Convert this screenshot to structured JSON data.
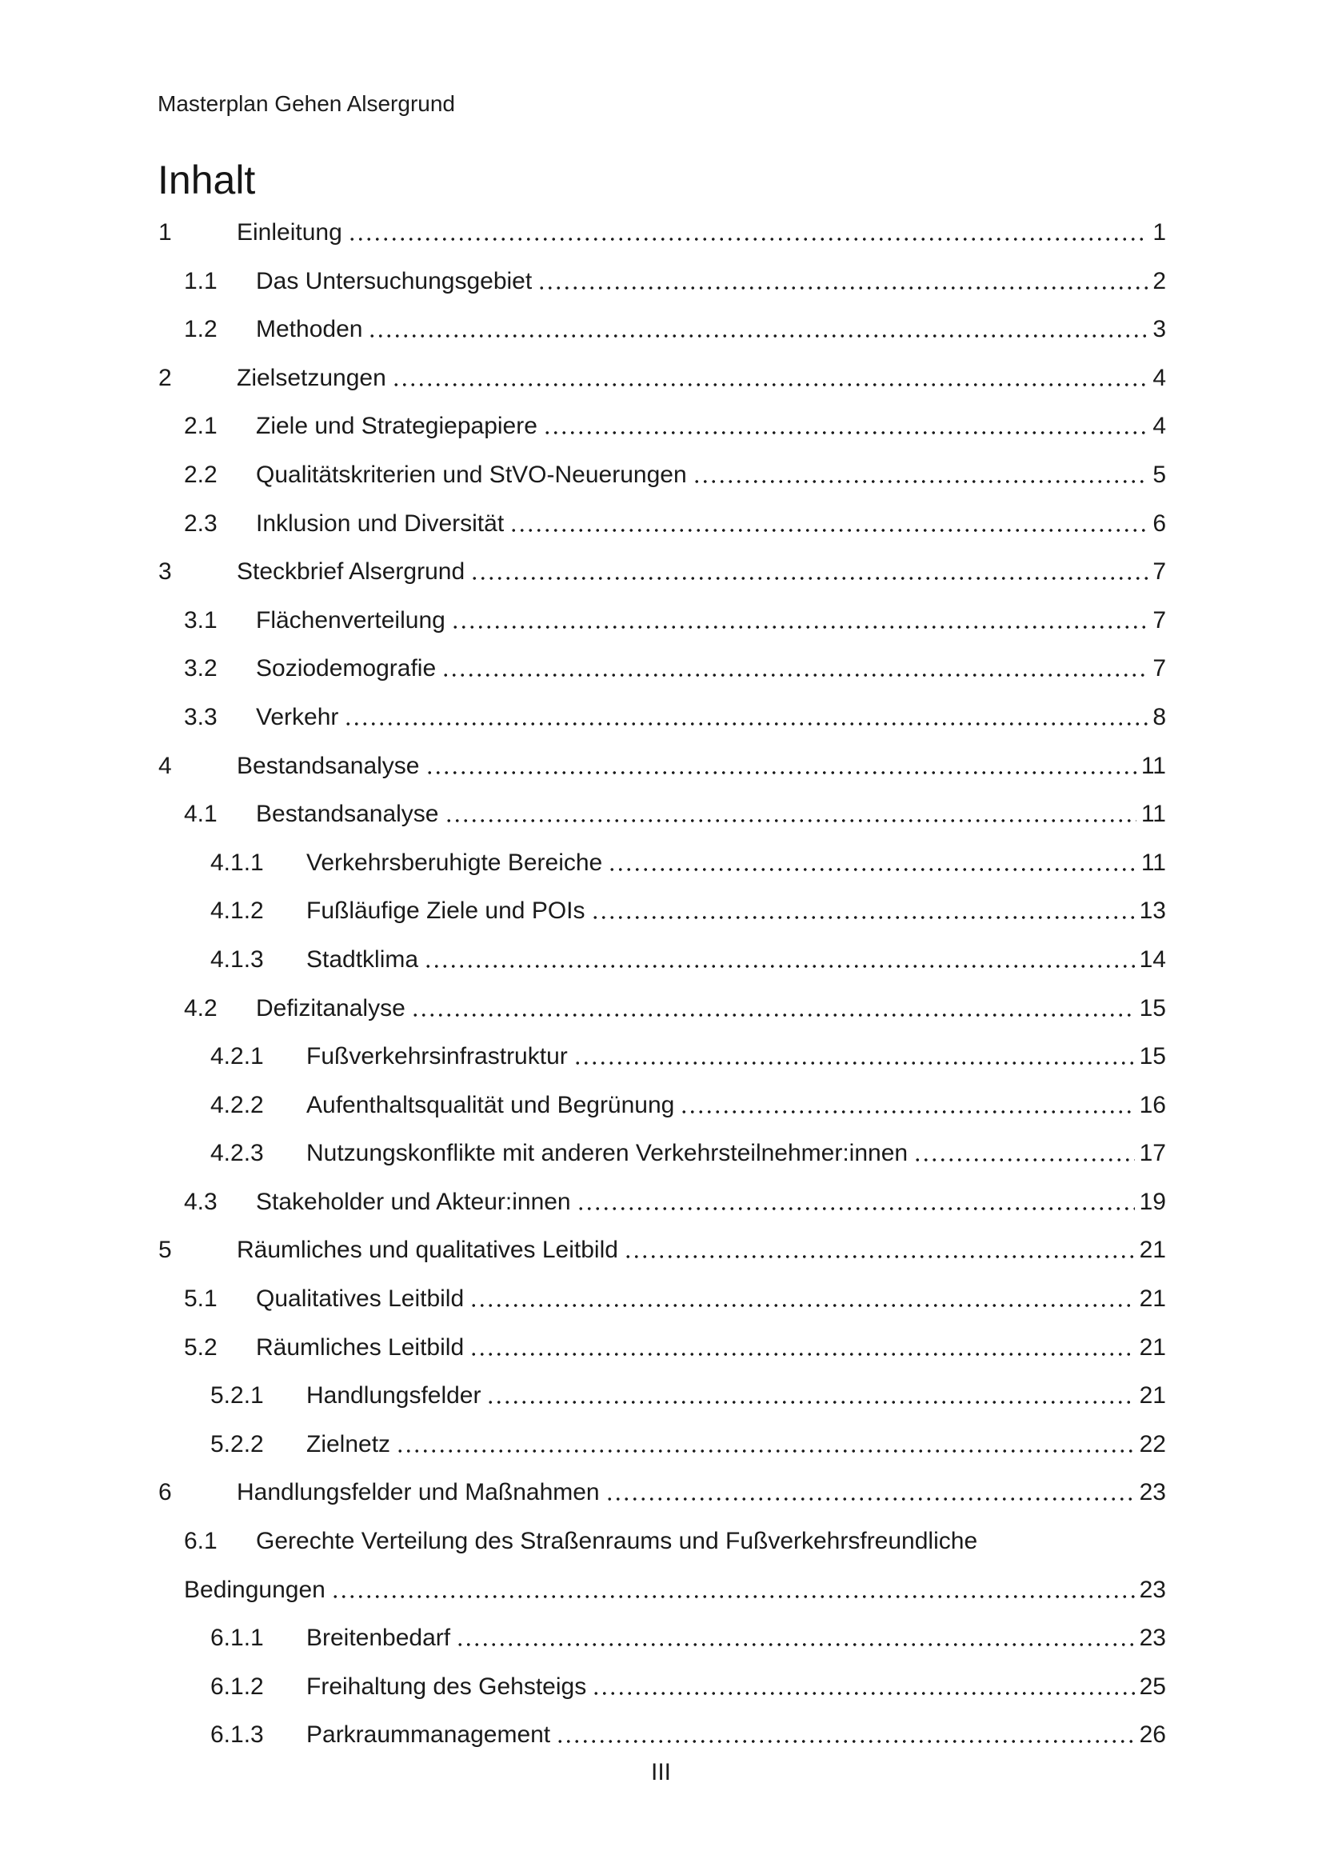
{
  "page": {
    "header": "Masterplan Gehen Alsergrund",
    "title": "Inhalt",
    "footer_page_number": "III"
  },
  "toc": {
    "entries": [
      {
        "number": "1",
        "label": "Einleitung",
        "page": "1",
        "level": 1
      },
      {
        "number": "1.1",
        "label": "Das Untersuchungsgebiet",
        "page": "2",
        "level": 2
      },
      {
        "number": "1.2",
        "label": "Methoden",
        "page": "3",
        "level": 2
      },
      {
        "number": "2",
        "label": "Zielsetzungen",
        "page": "4",
        "level": 1
      },
      {
        "number": "2.1",
        "label": "Ziele und Strategiepapiere",
        "page": "4",
        "level": 2
      },
      {
        "number": "2.2",
        "label": "Qualitätskriterien und StVO-Neuerungen",
        "page": "5",
        "level": 2
      },
      {
        "number": "2.3",
        "label": "Inklusion und Diversität",
        "page": "6",
        "level": 2
      },
      {
        "number": "3",
        "label": "Steckbrief Alsergrund",
        "page": "7",
        "level": 1
      },
      {
        "number": "3.1",
        "label": "Flächenverteilung",
        "page": "7",
        "level": 2
      },
      {
        "number": "3.2",
        "label": "Soziodemografie",
        "page": "7",
        "level": 2
      },
      {
        "number": "3.3",
        "label": "Verkehr",
        "page": "8",
        "level": 2
      },
      {
        "number": "4",
        "label": "Bestandsanalyse",
        "page": "11",
        "level": 1
      },
      {
        "number": "4.1",
        "label": "Bestandsanalyse",
        "page": "11",
        "level": 2
      },
      {
        "number": "4.1.1",
        "label": "Verkehrsberuhigte Bereiche",
        "page": "11",
        "level": 3
      },
      {
        "number": "4.1.2",
        "label": "Fußläufige Ziele und POIs",
        "page": "13",
        "level": 3
      },
      {
        "number": "4.1.3",
        "label": "Stadtklima",
        "page": "14",
        "level": 3
      },
      {
        "number": "4.2",
        "label": "Defizitanalyse",
        "page": "15",
        "level": 2
      },
      {
        "number": "4.2.1",
        "label": "Fußverkehrsinfrastruktur",
        "page": "15",
        "level": 3
      },
      {
        "number": "4.2.2",
        "label": "Aufenthaltsqualität und Begrünung",
        "page": "16",
        "level": 3
      },
      {
        "number": "4.2.3",
        "label": "Nutzungskonflikte mit anderen Verkehrsteilnehmer:innen",
        "page": "17",
        "level": 3
      },
      {
        "number": "4.3",
        "label": "Stakeholder und Akteur:innen",
        "page": "19",
        "level": 2
      },
      {
        "number": "5",
        "label": "Räumliches und qualitatives Leitbild",
        "page": "21",
        "level": 1
      },
      {
        "number": "5.1",
        "label": "Qualitatives Leitbild",
        "page": "21",
        "level": 2
      },
      {
        "number": "5.2",
        "label": "Räumliches Leitbild",
        "page": "21",
        "level": 2
      },
      {
        "number": "5.2.1",
        "label": "Handlungsfelder",
        "page": "21",
        "level": 3
      },
      {
        "number": "5.2.2",
        "label": "Zielnetz",
        "page": "22",
        "level": 3
      },
      {
        "number": "6",
        "label": "Handlungsfelder und Maßnahmen",
        "page": "23",
        "level": 1
      },
      {
        "number": "6.1",
        "label": "Gerechte Verteilung des Straßenraums und Fußverkehrsfreundliche",
        "label_continued": "Bedingungen",
        "page": "23",
        "level": 2
      },
      {
        "number": "6.1.1",
        "label": "Breitenbedarf",
        "page": "23",
        "level": 3
      },
      {
        "number": "6.1.2",
        "label": "Freihaltung des Gehsteigs",
        "page": "25",
        "level": 3
      },
      {
        "number": "6.1.3",
        "label": "Parkraummanagement",
        "page": "26",
        "level": 3
      }
    ]
  }
}
